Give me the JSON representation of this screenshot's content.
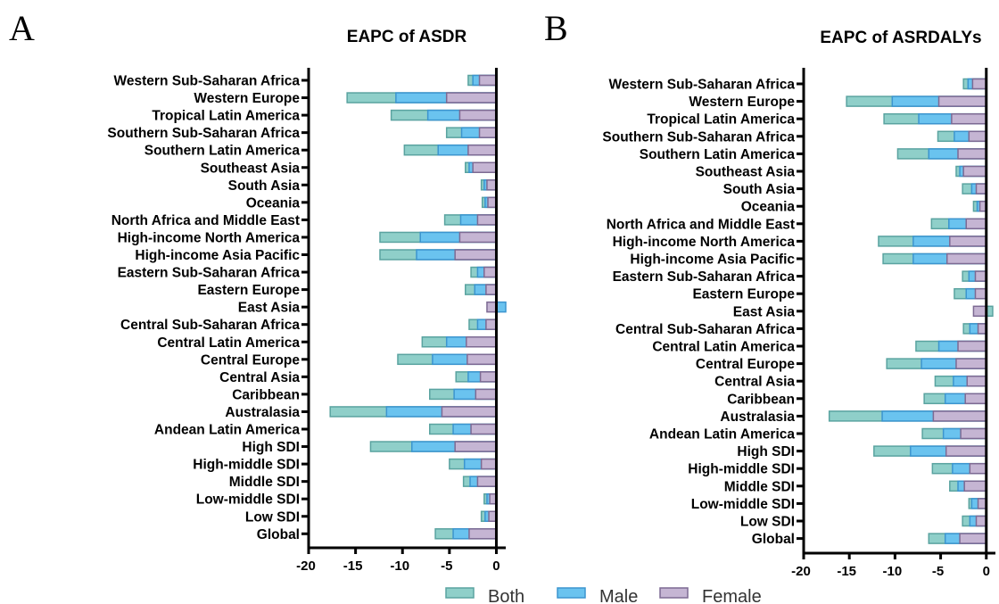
{
  "colors": {
    "both": "#8fcfc9",
    "both_stroke": "#5aa3a0",
    "male": "#6ac3ef",
    "male_stroke": "#3c95cf",
    "female": "#c5b5d3",
    "female_stroke": "#7d6a93"
  },
  "legend": [
    {
      "label": "Both",
      "key": "both"
    },
    {
      "label": "Male",
      "key": "male"
    },
    {
      "label": "Female",
      "key": "female"
    }
  ],
  "chart_data": [
    {
      "panel": "A",
      "type": "bar",
      "orientation": "horizontal",
      "title": "EAPC of ASDR",
      "xlim": [
        -20,
        1
      ],
      "xticks": [
        -20,
        -15,
        -10,
        -5,
        0
      ],
      "categories": [
        "Western Sub-Saharan Africa",
        "Western Europe",
        "Tropical Latin America",
        "Southern Sub-Saharan Africa",
        "Southern Latin America",
        "Southeast Asia",
        "South Asia",
        "Oceania",
        "North Africa and Middle East",
        "High-income North America",
        "High-income Asia Pacific",
        "Eastern Sub-Saharan Africa",
        "Eastern Europe",
        "East Asia",
        "Central Sub-Saharan Africa",
        "Central Latin America",
        "Central Europe",
        "Central Asia",
        "Caribbean",
        "Australasia",
        "Andean Latin America",
        "High SDI",
        "High-middle SDI",
        "Middle SDI",
        "Low-middle SDI",
        "Low SDI",
        "Global"
      ],
      "series": [
        {
          "name": "Both",
          "values": [
            -3.0,
            -15.9,
            -11.2,
            -5.3,
            -9.8,
            -3.3,
            -1.6,
            -1.5,
            -5.5,
            -12.4,
            -12.4,
            -2.7,
            -3.3,
            0.3,
            -2.9,
            -7.9,
            -10.5,
            -4.3,
            -7.1,
            -17.7,
            -7.1,
            -13.4,
            -5.0,
            -3.5,
            -1.3,
            -1.6,
            -6.5
          ]
        },
        {
          "name": "Male",
          "values": [
            -2.5,
            -10.7,
            -7.3,
            -3.7,
            -6.2,
            -2.9,
            -1.3,
            -1.2,
            -3.8,
            -8.1,
            -8.5,
            -2.0,
            -2.3,
            1.0,
            -2.0,
            -5.3,
            -6.8,
            -3.0,
            -4.5,
            -11.7,
            -4.6,
            -9.0,
            -3.4,
            -2.8,
            -1.0,
            -1.2,
            -4.6
          ]
        },
        {
          "name": "Female",
          "values": [
            -1.8,
            -5.3,
            -3.9,
            -1.8,
            -3.0,
            -2.5,
            -1.0,
            -0.9,
            -2.0,
            -3.9,
            -4.4,
            -1.3,
            -1.1,
            -1.0,
            -1.1,
            -3.2,
            -3.1,
            -1.7,
            -2.2,
            -5.8,
            -2.7,
            -4.4,
            -1.6,
            -2.0,
            -0.7,
            -0.8,
            -2.9
          ]
        }
      ]
    },
    {
      "panel": "B",
      "type": "bar",
      "orientation": "horizontal",
      "title": "EAPC of ASRDALYs",
      "xlim": [
        -20,
        1
      ],
      "xticks": [
        -20,
        -15,
        -10,
        -5,
        0
      ],
      "categories": [
        "Western Sub-Saharan Africa",
        "Western Europe",
        "Tropical Latin America",
        "Southern Sub-Saharan Africa",
        "Southern Latin America",
        "Southeast Asia",
        "South Asia",
        "Oceania",
        "North Africa and Middle East",
        "High-income North America",
        "High-income Asia Pacific",
        "Eastern Sub-Saharan Africa",
        "Eastern Europe",
        "East Asia",
        "Central Sub-Saharan Africa",
        "Central Latin America",
        "Central Europe",
        "Central Asia",
        "Caribbean",
        "Australasia",
        "Andean Latin America",
        "High SDI",
        "High-middle SDI",
        "Middle SDI",
        "Low-middle SDI",
        "Low SDI",
        "Global"
      ],
      "series": [
        {
          "name": "Both",
          "values": [
            -2.5,
            -15.3,
            -11.2,
            -5.3,
            -9.7,
            -3.3,
            -2.6,
            -1.4,
            -6.0,
            -11.8,
            -11.3,
            -2.6,
            -3.5,
            0.7,
            -2.5,
            -7.7,
            -10.9,
            -5.6,
            -6.8,
            -17.2,
            -7.0,
            -12.3,
            -5.9,
            -4.0,
            -1.9,
            -2.6,
            -6.3
          ]
        },
        {
          "name": "Male",
          "values": [
            -2.0,
            -10.3,
            -7.4,
            -3.5,
            -6.3,
            -2.9,
            -1.6,
            -1.0,
            -4.1,
            -8.0,
            -8.0,
            -1.9,
            -2.2,
            -0.7,
            -1.8,
            -5.2,
            -7.1,
            -3.6,
            -4.5,
            -11.4,
            -4.7,
            -8.3,
            -3.7,
            -3.1,
            -1.6,
            -1.8,
            -4.5
          ]
        },
        {
          "name": "Female",
          "values": [
            -1.5,
            -5.2,
            -3.8,
            -1.9,
            -3.1,
            -2.5,
            -1.1,
            -0.7,
            -2.2,
            -4.0,
            -4.3,
            -1.2,
            -1.2,
            -1.4,
            -0.9,
            -3.1,
            -3.3,
            -2.1,
            -2.3,
            -5.8,
            -2.8,
            -4.4,
            -1.8,
            -2.4,
            -0.9,
            -1.1,
            -2.9
          ]
        }
      ]
    }
  ]
}
